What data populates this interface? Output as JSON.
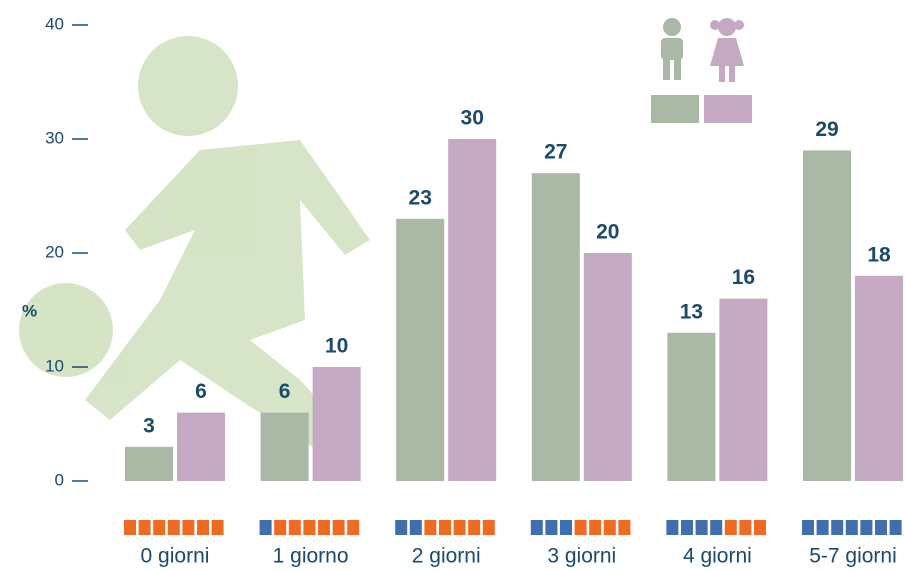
{
  "chart_data": {
    "type": "bar",
    "y_label": "%",
    "categories": [
      "0 giorni",
      "1 giorno",
      "2 giorni",
      "3 giorni",
      "4 giorni",
      "5-7 giorni"
    ],
    "series": [
      {
        "color": "#a9b9a6",
        "values": [
          3,
          6,
          23,
          27,
          13,
          29
        ]
      },
      {
        "color": "#c5a9c2",
        "values": [
          6,
          10,
          30,
          20,
          16,
          18
        ]
      }
    ],
    "ylim": [
      0,
      40
    ],
    "yticks": [
      0,
      10,
      20,
      30,
      40
    ]
  }
}
